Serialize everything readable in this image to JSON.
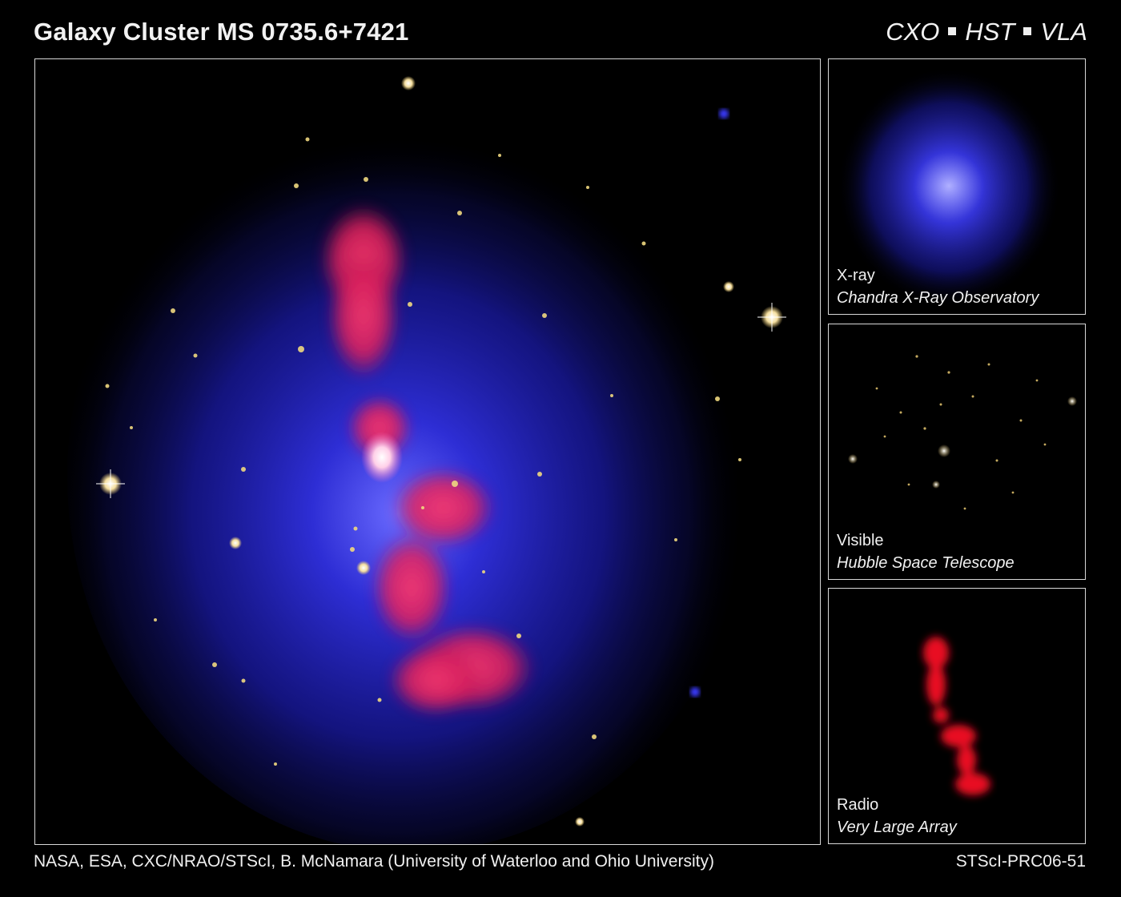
{
  "title": "Galaxy Cluster MS 0735.6+7421",
  "observatories": [
    "CXO",
    "HST",
    "VLA"
  ],
  "panels": [
    {
      "label": "X-ray",
      "source": "Chandra X-Ray Observatory"
    },
    {
      "label": "Visible",
      "source": "Hubble Space Telescope"
    },
    {
      "label": "Radio",
      "source": "Very Large Array"
    }
  ],
  "credits": "NASA, ESA, CXC/NRAO/STScI, B. McNamara (University of Waterloo and Ohio University)",
  "release_id": "STScI-PRC06-51",
  "colors": {
    "xray": "#2a2ad8",
    "visible": "#f0d88a",
    "radio": "#ff2a5a",
    "frame": "#d8d8d8"
  }
}
